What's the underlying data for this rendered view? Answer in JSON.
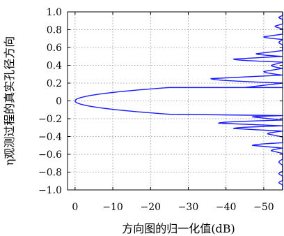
{
  "chart_data": {
    "type": "line",
    "xlabel": "方向图的归一化值(dB)",
    "ylabel": "η观测过程的真实孔径方向",
    "xlim": [
      2,
      -55
    ],
    "ylim": [
      -1.0,
      1.0
    ],
    "x_ticks": [
      0,
      -10,
      -20,
      -30,
      -40,
      -50
    ],
    "x_tick_labels": [
      "0",
      "−10",
      "−20",
      "−30",
      "−40",
      "−50"
    ],
    "y_ticks": [
      -1.0,
      -0.8,
      -0.6,
      -0.4,
      -0.2,
      0,
      0.2,
      0.4,
      0.6,
      0.8,
      1.0
    ],
    "y_tick_labels": [
      "−1.0",
      "−0.8",
      "−0.6",
      "−0.4",
      "−0.2",
      "0",
      "0.2",
      "0.4",
      "0.6",
      "0.8",
      "1.0"
    ],
    "grid": true,
    "line_color": "#1a1aff",
    "series": [
      {
        "main_lobe_half_width": 0.15,
        "peak_x": 0,
        "main_lobe_edge_x": -25,
        "sidelobes_positive": [
          {
            "y": 0.15,
            "level": -45
          },
          {
            "y": 0.25,
            "level": -36
          },
          {
            "y": 0.33,
            "level": -50
          },
          {
            "y": 0.4,
            "level": -52
          },
          {
            "y": 0.47,
            "level": -42
          },
          {
            "y": 0.53,
            "level": -48
          },
          {
            "y": 0.6,
            "level": -55
          },
          {
            "y": 0.66,
            "level": -54
          },
          {
            "y": 0.72,
            "level": -50
          },
          {
            "y": 0.78,
            "level": -55
          },
          {
            "y": 0.84,
            "level": -53
          },
          {
            "y": 0.89,
            "level": -55
          },
          {
            "y": 0.94,
            "level": -54
          },
          {
            "y": 0.98,
            "level": -55
          }
        ],
        "sidelobes_negative": [
          {
            "y": -0.18,
            "level": -47
          },
          {
            "y": -0.25,
            "level": -38
          },
          {
            "y": -0.31,
            "level": -42
          },
          {
            "y": -0.37,
            "level": -51
          },
          {
            "y": -0.44,
            "level": -55
          },
          {
            "y": -0.5,
            "level": -47
          },
          {
            "y": -0.56,
            "level": -52
          },
          {
            "y": -0.62,
            "level": -55
          },
          {
            "y": -0.69,
            "level": -54
          },
          {
            "y": -0.76,
            "level": -55
          },
          {
            "y": -0.82,
            "level": -54
          },
          {
            "y": -0.87,
            "level": -55
          },
          {
            "y": -0.92,
            "level": -54
          },
          {
            "y": -0.97,
            "level": -55
          }
        ]
      }
    ]
  }
}
